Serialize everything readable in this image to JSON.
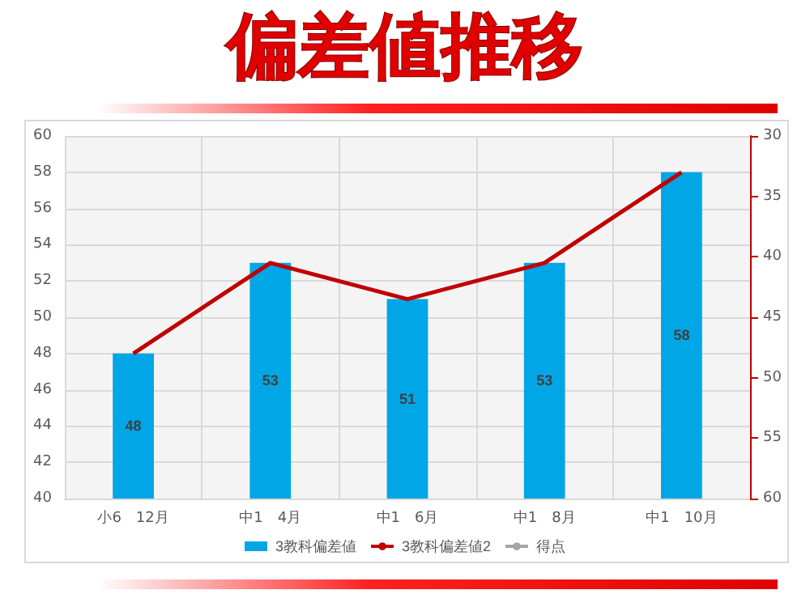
{
  "chart_data": {
    "type": "bar",
    "title": "偏差値推移",
    "categories": [
      "小6　12月",
      "中1　4月",
      "中1　6月",
      "中1　8月",
      "中1　10月"
    ],
    "series": [
      {
        "name": "3教科偏差値",
        "color": "#00a6e6",
        "values": [
          48,
          53,
          51,
          53,
          58
        ],
        "value_labels": [
          "48",
          "53",
          "51",
          "53",
          "58"
        ]
      },
      {
        "name": "3教科偏差値2",
        "type": "line",
        "axis": "y2",
        "color": "#c00000",
        "values": [
          48,
          40.5,
          43.5,
          40.5,
          33
        ]
      },
      {
        "name": "得点",
        "type": "line",
        "color": "#a5a5a5",
        "values": [
          null,
          null,
          null,
          null,
          null
        ]
      }
    ],
    "ylim": [
      40,
      60
    ],
    "yticks": [
      40,
      42,
      44,
      46,
      48,
      50,
      52,
      54,
      56,
      58,
      60
    ],
    "y2lim": [
      60,
      30
    ],
    "y2ticks": [
      30,
      35,
      40,
      45,
      50,
      55,
      60
    ],
    "grid": true,
    "legend": "bottom",
    "marker": "none",
    "line_style": "solid"
  }
}
